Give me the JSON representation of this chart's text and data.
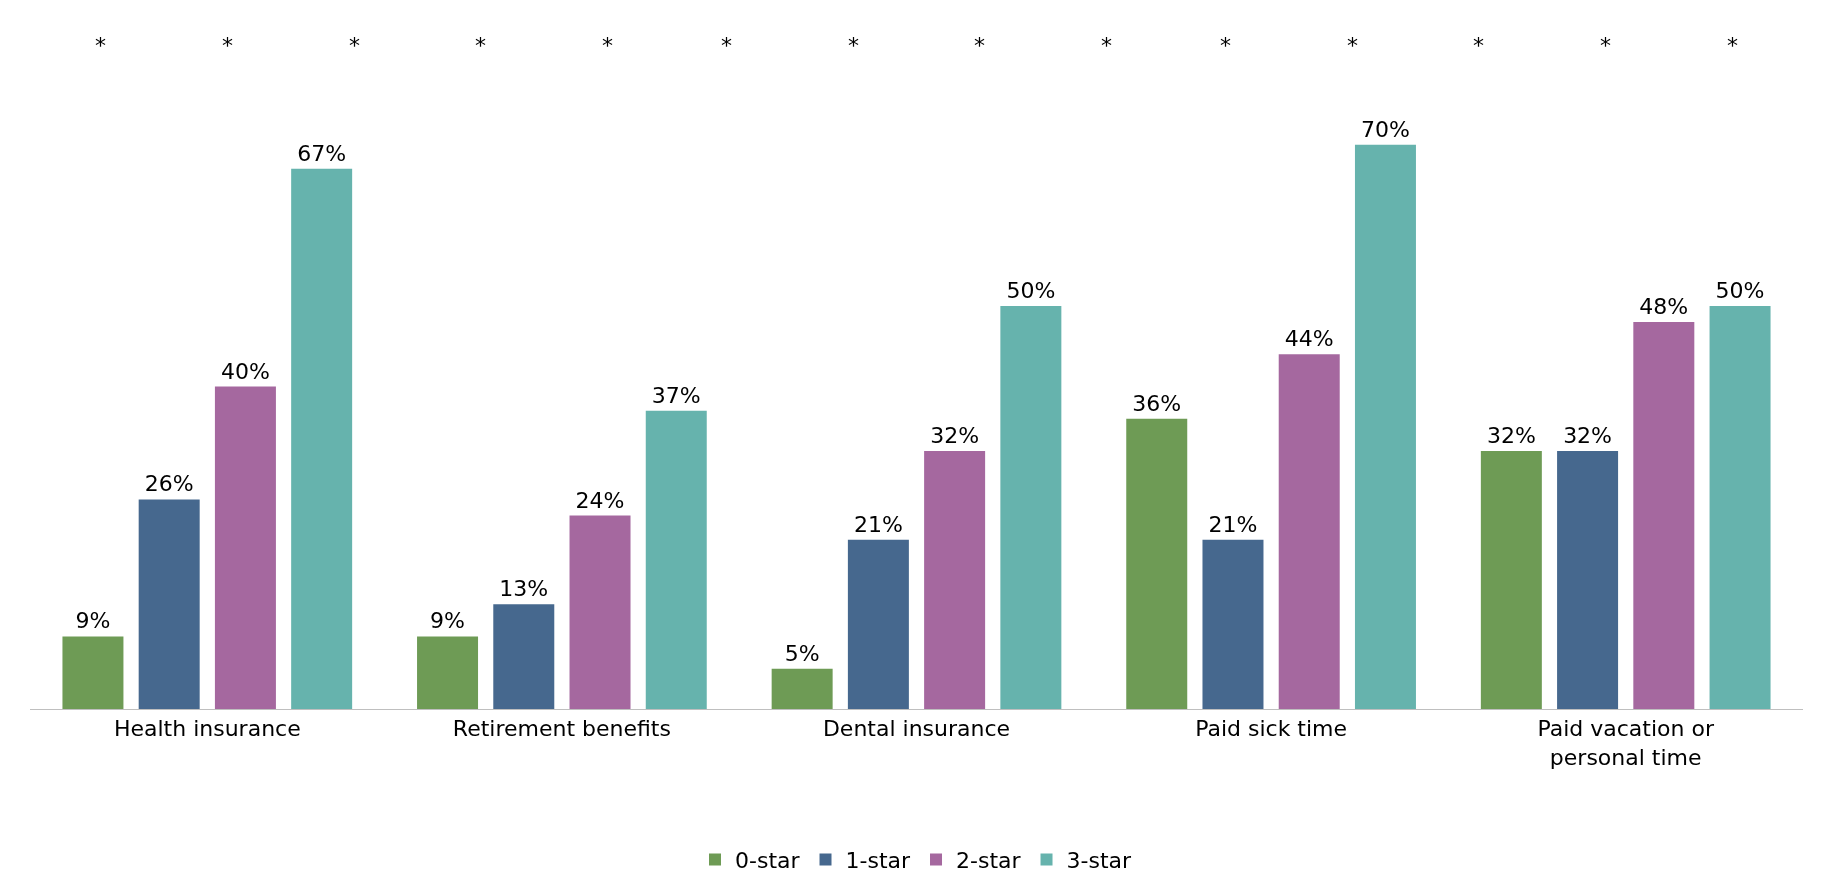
{
  "chart_data": {
    "type": "bar",
    "categories": [
      "Health insurance",
      "Retirement benefits",
      "Dental insurance",
      "Paid sick time",
      "Paid vacation or personal time"
    ],
    "series": [
      {
        "name": "0-star",
        "color": "#6e9b55",
        "values": [
          9,
          9,
          5,
          36,
          32
        ],
        "value_labels": [
          "9%",
          "9%",
          "5%",
          "36%",
          "32%"
        ]
      },
      {
        "name": "1-star",
        "color": "#46688e",
        "values": [
          26,
          13,
          21,
          21,
          32
        ],
        "value_labels": [
          "26%",
          "13%",
          "21%",
          "21%",
          "32%"
        ]
      },
      {
        "name": "2-star",
        "color": "#a5689f",
        "values": [
          40,
          24,
          32,
          44,
          48
        ],
        "value_labels": [
          "40%",
          "24%",
          "32%",
          "44%",
          "48%"
        ]
      },
      {
        "name": "3-star",
        "color": "#66b3ad",
        "values": [
          67,
          37,
          50,
          70,
          50
        ],
        "value_labels": [
          "67%",
          "37%",
          "50%",
          "70%",
          "50%"
        ]
      }
    ],
    "annotations": [
      "*",
      "*",
      "*",
      "*",
      "*",
      "*",
      "*",
      "*",
      "*",
      "*",
      "*",
      "*",
      "*",
      "*"
    ],
    "legend": "bottom"
  }
}
